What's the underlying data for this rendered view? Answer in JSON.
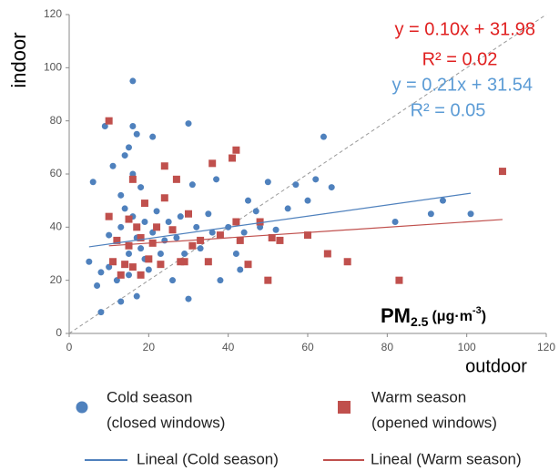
{
  "chart_data": {
    "type": "scatter",
    "x_label": "outdoor",
    "y_label": "indoor",
    "annotation": {
      "main": "PM",
      "sub": "2.5",
      "unit": "(μg·m",
      "sup": "-3",
      "close": ")"
    },
    "xlim": [
      0,
      120
    ],
    "xticks": [
      0,
      20,
      40,
      60,
      80,
      100,
      120
    ],
    "ylim": [
      0,
      120
    ],
    "yticks": [
      0,
      20,
      40,
      60,
      80,
      100,
      120
    ],
    "grid": false,
    "diagonal": true,
    "series": [
      {
        "name": "Cold season",
        "subtitle": "(closed windows)",
        "color": "#4f81bd",
        "marker": "circle",
        "x": [
          5,
          6,
          7,
          8,
          8,
          9,
          10,
          10,
          11,
          12,
          12,
          13,
          13,
          13,
          14,
          14,
          15,
          15,
          15,
          16,
          16,
          16,
          16,
          17,
          17,
          17,
          18,
          18,
          19,
          19,
          20,
          21,
          21,
          22,
          23,
          24,
          25,
          26,
          27,
          28,
          29,
          30,
          30,
          31,
          32,
          33,
          35,
          36,
          37,
          38,
          40,
          42,
          43,
          44,
          45,
          47,
          48,
          50,
          52,
          55,
          57,
          60,
          62,
          64,
          66,
          82,
          91,
          94,
          101
        ],
        "values": [
          27,
          57,
          18,
          23,
          8,
          78,
          25,
          37,
          63,
          35,
          20,
          52,
          40,
          12,
          47,
          67,
          70,
          30,
          22,
          95,
          78,
          60,
          44,
          75,
          36,
          14,
          55,
          32,
          28,
          42,
          24,
          74,
          38,
          46,
          30,
          35,
          42,
          20,
          36,
          44,
          30,
          79,
          13,
          56,
          40,
          32,
          45,
          38,
          58,
          20,
          40,
          30,
          24,
          38,
          50,
          46,
          40,
          57,
          39,
          47,
          56,
          50,
          58,
          74,
          55,
          42,
          45,
          50,
          45
        ],
        "trendline": {
          "name": "Lineal (Cold season)",
          "equation": "y = 0.21x + 31.54",
          "r2": "R² = 0.05",
          "slope": 0.21,
          "intercept": 31.54,
          "label_color": "#5b9bd5"
        }
      },
      {
        "name": "Warm season",
        "subtitle": "(opened windows)",
        "color": "#c0504d",
        "marker": "square",
        "x": [
          10,
          10,
          11,
          12,
          13,
          14,
          15,
          15,
          16,
          16,
          17,
          18,
          18,
          19,
          20,
          21,
          22,
          23,
          24,
          24,
          26,
          27,
          28,
          29,
          30,
          31,
          33,
          35,
          36,
          38,
          41,
          42,
          42,
          43,
          45,
          48,
          50,
          51,
          53,
          60,
          65,
          70,
          83,
          109
        ],
        "values": [
          80,
          44,
          27,
          35,
          22,
          26,
          33,
          43,
          58,
          25,
          40,
          22,
          36,
          49,
          28,
          34,
          40,
          26,
          51,
          63,
          39,
          58,
          27,
          27,
          45,
          33,
          35,
          27,
          64,
          37,
          66,
          69,
          42,
          35,
          26,
          42,
          20,
          36,
          35,
          37,
          30,
          27,
          20,
          61
        ],
        "trendline": {
          "name": "Lineal (Warm season)",
          "equation": "y = 0.10x + 31.98",
          "r2": "R² = 0.02",
          "slope": 0.1,
          "intercept": 31.98,
          "label_color": "#e02020"
        }
      }
    ]
  }
}
